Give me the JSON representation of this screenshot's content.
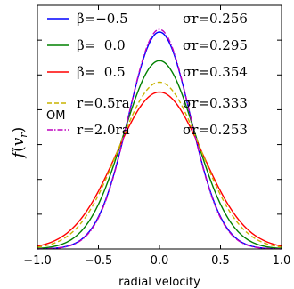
{
  "chart_data": {
    "type": "line",
    "title": "",
    "xlabel": "radial velocity",
    "ylabel": "f(v_r)",
    "xlim": [
      -1.0,
      1.0
    ],
    "ylim": [
      0,
      1.75
    ],
    "xticks": [
      "−1.0",
      "−0.5",
      "0.0",
      "0.5",
      "1.0"
    ],
    "yticks_labeled": false,
    "grid": false,
    "legend_position": "top",
    "side_label": "OM",
    "series": [
      {
        "name": "β=−0.5",
        "sigma_label": "σr=0.256",
        "sigma": 0.256,
        "color": "#0000ff",
        "dash": "solid",
        "x": [
          -1.0,
          -0.75,
          -0.5,
          -0.25,
          0.0,
          0.25,
          0.5,
          0.75,
          1.0
        ],
        "y": [
          0.0,
          0.006,
          0.175,
          0.968,
          1.56,
          0.968,
          0.175,
          0.006,
          0.0
        ]
      },
      {
        "name": "β=  0.0",
        "sigma_label": "σr=0.295",
        "sigma": 0.295,
        "color": "#008000",
        "dash": "solid",
        "x": [
          -1.0,
          -0.75,
          -0.5,
          -0.25,
          0.0,
          0.25,
          0.5,
          0.75,
          1.0
        ],
        "y": [
          0.0,
          0.036,
          0.317,
          0.94,
          1.353,
          0.94,
          0.317,
          0.036,
          0.0
        ]
      },
      {
        "name": "β=  0.5",
        "sigma_label": "σr=0.354",
        "sigma": 0.354,
        "color": "#ff0000",
        "dash": "solid",
        "x": [
          -1.0,
          -0.75,
          -0.5,
          -0.25,
          0.0,
          0.25,
          0.5,
          0.75,
          1.0
        ],
        "y": [
          0.019,
          0.119,
          0.415,
          0.879,
          1.127,
          0.879,
          0.415,
          0.119,
          0.019
        ]
      },
      {
        "name": "r=0.5ra",
        "sigma_label": "σr=0.333",
        "sigma": 0.333,
        "color": "#c8b400",
        "dash": "dashed",
        "x": [
          -1.0,
          -0.75,
          -0.5,
          -0.25,
          0.0,
          0.25,
          0.5,
          0.75,
          1.0
        ],
        "y": [
          0.0,
          0.05,
          0.35,
          0.93,
          1.2,
          0.93,
          0.35,
          0.05,
          0.0
        ]
      },
      {
        "name": "r=2.0ra",
        "sigma_label": "σr=0.253",
        "sigma": 0.253,
        "color": "#bf00bf",
        "dash": "dashdot",
        "x": [
          -1.0,
          -0.75,
          -0.5,
          -0.25,
          0.0,
          0.25,
          0.5,
          0.75,
          1.0
        ],
        "y": [
          0.0,
          0.01,
          0.2,
          1.0,
          1.5,
          1.0,
          0.2,
          0.01,
          0.0
        ]
      }
    ]
  }
}
